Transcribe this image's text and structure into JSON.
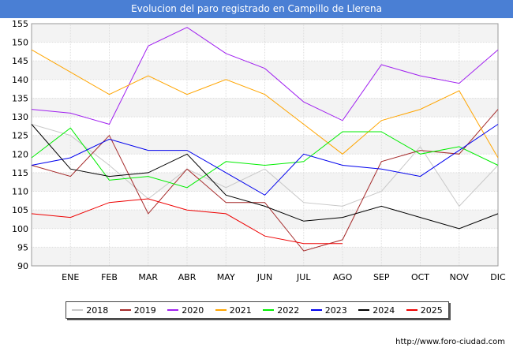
{
  "chart_data": {
    "type": "line",
    "title": "Evolucion del paro registrado en Campillo de Llerena",
    "xlabel": "",
    "ylabel": "",
    "categories": [
      "",
      "ENE",
      "FEB",
      "MAR",
      "ABR",
      "MAY",
      "JUN",
      "JUL",
      "AGO",
      "SEP",
      "OCT",
      "NOV",
      "DIC"
    ],
    "y_ticks": [
      90,
      95,
      100,
      105,
      110,
      115,
      120,
      125,
      130,
      135,
      140,
      145,
      150,
      155
    ],
    "ylim": [
      90,
      155
    ],
    "grid": true,
    "legend_position": "bottom",
    "series": [
      {
        "name": "2018",
        "color": "#c8c8c8",
        "values": [
          128,
          125,
          117,
          108,
          116,
          111,
          116,
          107,
          106,
          110,
          122,
          106,
          117
        ]
      },
      {
        "name": "2019",
        "color": "#a52a2a",
        "values": [
          117,
          114,
          125,
          104,
          116,
          107,
          107,
          94,
          97,
          118,
          121,
          120,
          132
        ]
      },
      {
        "name": "2020",
        "color": "#a020f0",
        "values": [
          132,
          131,
          128,
          149,
          154,
          147,
          143,
          134,
          129,
          144,
          141,
          139,
          148
        ]
      },
      {
        "name": "2021",
        "color": "#ffa500",
        "values": [
          148,
          142,
          136,
          141,
          136,
          140,
          136,
          128,
          120,
          129,
          132,
          137,
          119
        ]
      },
      {
        "name": "2022",
        "color": "#00ee00",
        "values": [
          119,
          127,
          113,
          114,
          111,
          118,
          117,
          118,
          126,
          126,
          120,
          122,
          117
        ]
      },
      {
        "name": "2023",
        "color": "#0000ee",
        "values": [
          117,
          119,
          124,
          121,
          121,
          115,
          109,
          120,
          117,
          116,
          114,
          121,
          128
        ]
      },
      {
        "name": "2024",
        "color": "#000000",
        "values": [
          128,
          116,
          114,
          115,
          120,
          109,
          106,
          102,
          103,
          106,
          103,
          100,
          104
        ]
      },
      {
        "name": "2025",
        "color": "#ee0000",
        "values": [
          104,
          103,
          107,
          108,
          105,
          104,
          98,
          96,
          96,
          null,
          null,
          null,
          null
        ]
      }
    ]
  },
  "source_url": "http://www.foro-ciudad.com"
}
